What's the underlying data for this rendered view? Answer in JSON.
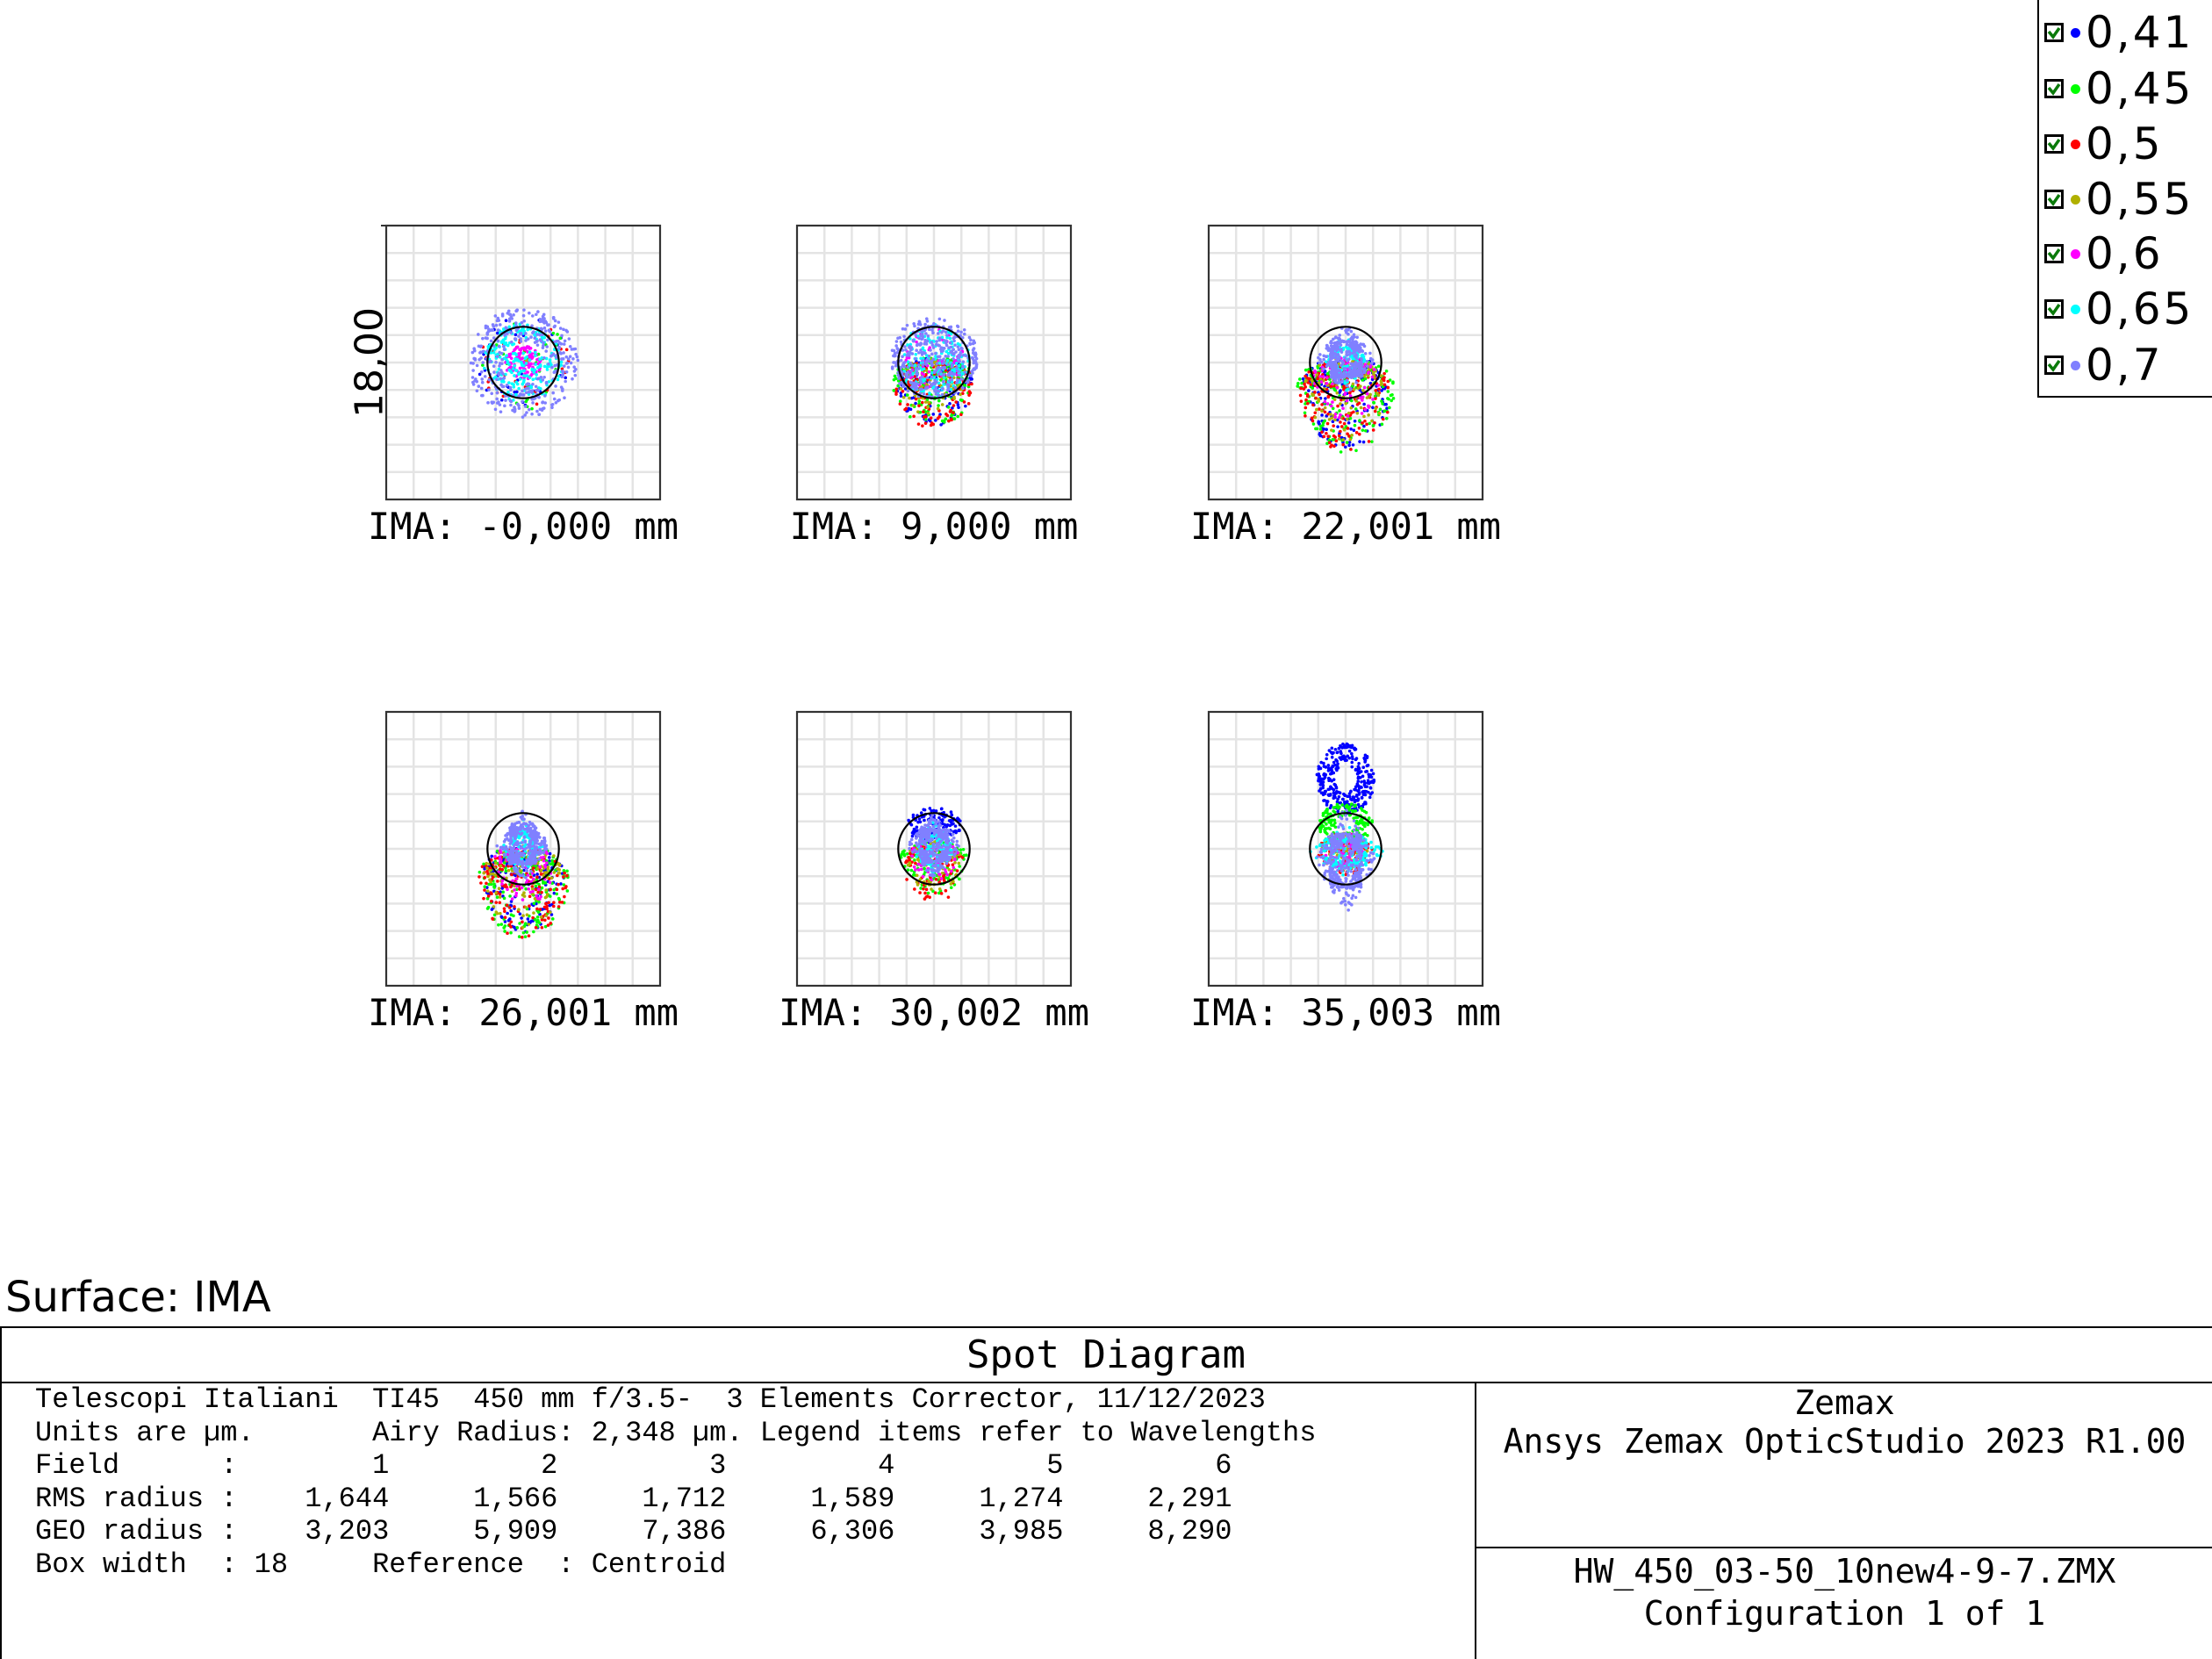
{
  "chart_data": {
    "type": "scatter",
    "title": "Spot Diagram",
    "surface_label": "Surface: IMA",
    "box_width_label": "18,00",
    "box_width_um": 18,
    "airy_radius_um": 2.348,
    "grid": true,
    "legend_placement": "top-right",
    "wavelengths": [
      {
        "label": "0,41",
        "color": "#0000ff",
        "checked": true
      },
      {
        "label": "0,45",
        "color": "#00ff00",
        "checked": true
      },
      {
        "label": "0,5",
        "color": "#ff0000",
        "checked": true
      },
      {
        "label": "0,55",
        "color": "#b0b000",
        "checked": true
      },
      {
        "label": "0,6",
        "color": "#ff00ff",
        "checked": true
      },
      {
        "label": "0,65",
        "color": "#00ffff",
        "checked": true
      },
      {
        "label": "0,7",
        "color": "#8080ff",
        "checked": true
      }
    ],
    "fields": [
      {
        "label": "IMA: -0,000 mm",
        "rms": "1,644",
        "geo": "3,203"
      },
      {
        "label": "IMA: 9,000 mm",
        "rms": "1,566",
        "geo": "5,909"
      },
      {
        "label": "IMA: 22,001 mm",
        "rms": "1,712",
        "geo": "7,386"
      },
      {
        "label": "IMA: 26,001 mm",
        "rms": "1,589",
        "geo": "6,306"
      },
      {
        "label": "IMA: 30,002 mm",
        "rms": "1,274",
        "geo": "3,985"
      },
      {
        "label": "IMA: 35,003 mm",
        "rms": "2,291",
        "geo": "8,290"
      }
    ]
  },
  "footer": {
    "title": "Spot Diagram",
    "lines": {
      "l1": "Telescopi Italiani  TI45  450 mm f/3.5-  3 Elements Corrector, 11/12/2023",
      "l2": "Units are µm.       Airy Radius: 2,348 µm. Legend items refer to Wavelengths",
      "l3": "Field      :        1         2         3         4         5         6",
      "l4": "RMS radius :    1,644     1,566     1,712     1,589     1,274     2,291",
      "l5": "GEO radius :    3,203     5,909     7,386     6,306     3,985     8,290",
      "l6": "Box width  : 18     Reference  : Centroid"
    },
    "company": "Zemax",
    "product": "Ansys Zemax OpticStudio 2023 R1.00",
    "file": "HW_450_03-50_10new4-9-7.ZMX",
    "configuration": "Configuration 1 of 1"
  }
}
